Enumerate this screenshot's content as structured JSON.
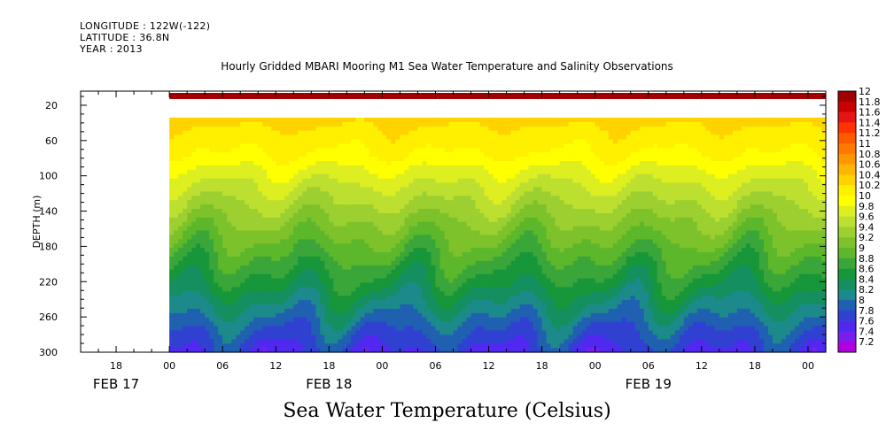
{
  "header": {
    "longitude": "LONGITUDE : 122W(-122)",
    "latitude": "LATITUDE : 36.8N",
    "year": "YEAR : 2013"
  },
  "chart_title": "Hourly Gridded MBARI Mooring M1 Sea Water Temperature and Salinity Observations",
  "variable_title": "Sea Water Temperature (Celsius)",
  "chart_data": {
    "type": "heatmap",
    "title": "Hourly Gridded MBARI Mooring M1 Sea Water Temperature and Salinity Observations",
    "xlabel": "",
    "ylabel": "DEPTH (m)",
    "colorbar_label": "Sea Water Temperature (Celsius)",
    "y_reversed": true,
    "ylim": [
      300,
      4
    ],
    "y_ticks": [
      20,
      60,
      100,
      140,
      180,
      220,
      260,
      300
    ],
    "x_range_hours": [
      -10,
      74
    ],
    "data_start_hour": 0,
    "x_tick_labels": [
      {
        "hour": -6,
        "label": "18"
      },
      {
        "hour": 0,
        "label": "00"
      },
      {
        "hour": 6,
        "label": "06"
      },
      {
        "hour": 12,
        "label": "12"
      },
      {
        "hour": 18,
        "label": "18"
      },
      {
        "hour": 24,
        "label": "00"
      },
      {
        "hour": 30,
        "label": "06"
      },
      {
        "hour": 36,
        "label": "12"
      },
      {
        "hour": 42,
        "label": "18"
      },
      {
        "hour": 48,
        "label": "00"
      },
      {
        "hour": 54,
        "label": "06"
      },
      {
        "hour": 60,
        "label": "12"
      },
      {
        "hour": 66,
        "label": "18"
      },
      {
        "hour": 72,
        "label": "00"
      }
    ],
    "day_labels": [
      {
        "hour": -6,
        "label": "FEB 17"
      },
      {
        "hour": 18,
        "label": "FEB 18"
      },
      {
        "hour": 54,
        "label": "FEB 19"
      }
    ],
    "colorbar_levels": [
      "12",
      "11.8",
      "11.6",
      "11.4",
      "11.2",
      "11",
      "10.8",
      "10.6",
      "10.4",
      "10.2",
      "10",
      "9.8",
      "9.6",
      "9.4",
      "9.2",
      "9",
      "8.8",
      "8.6",
      "8.4",
      "8.2",
      "8",
      "7.8",
      "7.6",
      "7.4",
      "7.2"
    ],
    "colorbar_colors": [
      "#a00000",
      "#c80000",
      "#e61414",
      "#ff3200",
      "#ff5a00",
      "#ff7800",
      "#ff9600",
      "#ffb400",
      "#ffd200",
      "#fff000",
      "#ffff00",
      "#ddef20",
      "#bde030",
      "#9ccf30",
      "#7dc22a",
      "#5cb72a",
      "#3aa63a",
      "#17963a",
      "#149060",
      "#1c8a8a",
      "#2060b0",
      "#3040d0",
      "#5028f0",
      "#7a1ef0",
      "#b000e0"
    ],
    "surface_band": {
      "depth_top": 6,
      "depth_bottom": 13,
      "temperature": 11.9
    },
    "gap": {
      "depth_top": 13,
      "depth_bottom": 34
    },
    "profile_depths": [
      34,
      50,
      75,
      100,
      125,
      150,
      175,
      200,
      225,
      250,
      275,
      300
    ],
    "profile_temperatures_mean": [
      10.3,
      10.15,
      10.0,
      9.7,
      9.45,
      9.2,
      8.95,
      8.7,
      8.45,
      8.15,
      7.85,
      7.6
    ]
  }
}
